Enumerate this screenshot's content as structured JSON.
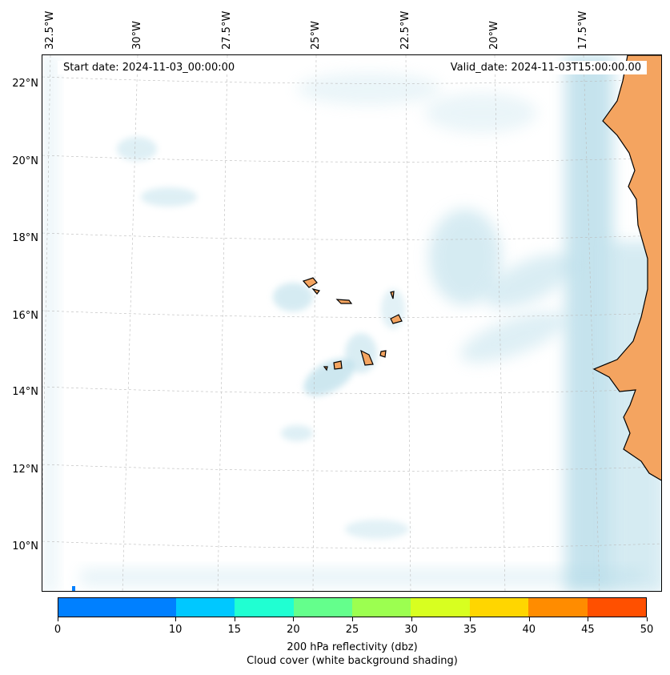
{
  "map": {
    "start_date": "Start date: 2024-11-03_00:00:00",
    "valid_date": "Valid_date: 2024-11-03T15:00:00.00",
    "lon_labels": [
      "32.5°W",
      "30°W",
      "27.5°W",
      "25°W",
      "22.5°W",
      "20°W",
      "17.5°W"
    ],
    "lat_labels": [
      "22°N",
      "20°N",
      "18°N",
      "16°N",
      "14°N",
      "12°N",
      "10°N"
    ],
    "land_color": "#f4a460",
    "cloud_color": "#add8e6"
  },
  "colorbar": {
    "ticks": [
      "0",
      "10",
      "15",
      "20",
      "25",
      "30",
      "35",
      "40",
      "45",
      "50"
    ],
    "colors": [
      "#0080ff",
      "#00c8ff",
      "#20ffd2",
      "#64ff8c",
      "#9cff50",
      "#d8ff20",
      "#ffd600",
      "#ff8c00",
      "#ff5000"
    ],
    "label_line1": "200 hPa reflectivity (dbz)",
    "label_line2": "Cloud cover (white background shading)"
  }
}
